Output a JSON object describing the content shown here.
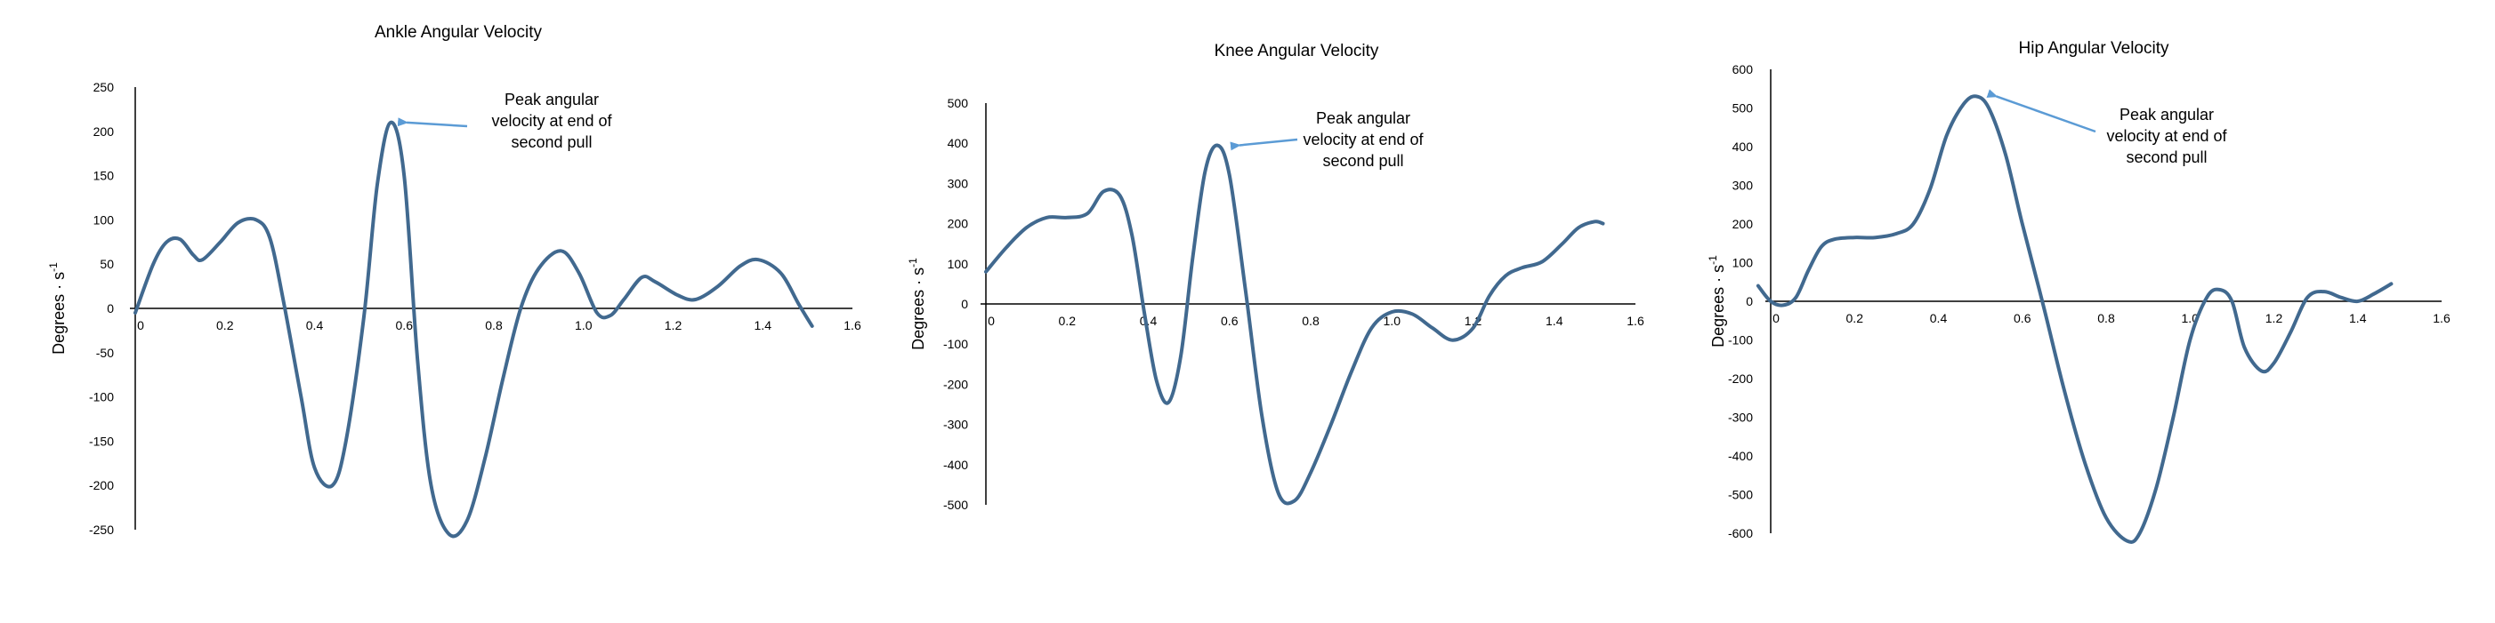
{
  "colors": {
    "series": "#41698f",
    "annotation_arrow": "#5b9bd5",
    "axis": "#000000"
  },
  "chart_data": [
    {
      "type": "line",
      "title": "Ankle Angular Velocity",
      "ylabel": "Degrees · s",
      "ylabel_sup": "-1",
      "xlim": [
        0,
        1.6
      ],
      "ylim": [
        -250,
        250
      ],
      "x_ticks": [
        "0",
        "0.2",
        "0.4",
        "0.6",
        "0.8",
        "1.0",
        "1.2",
        "1.4",
        "1.6"
      ],
      "y_ticks": [
        "250",
        "200",
        "150",
        "100",
        "50",
        "0",
        "-50",
        "-100",
        "-150",
        "-200",
        "-250"
      ],
      "x_tick_values": [
        0,
        0.2,
        0.4,
        0.6,
        0.8,
        1.0,
        1.2,
        1.4,
        1.6
      ],
      "y_tick_values": [
        250,
        200,
        150,
        100,
        50,
        0,
        -50,
        -100,
        -150,
        -200,
        -250
      ],
      "grid": false,
      "annotation": {
        "lines": [
          "Peak angular",
          "velocity at end of",
          "second pull"
        ],
        "x": 0.57,
        "y": 210
      },
      "series": [
        {
          "x": [
            0,
            0.04,
            0.07,
            0.1,
            0.13,
            0.15,
            0.19,
            0.23,
            0.27,
            0.3,
            0.33,
            0.37,
            0.4,
            0.44,
            0.47,
            0.51,
            0.54,
            0.57,
            0.6,
            0.63,
            0.66,
            0.7,
            0.74,
            0.78,
            0.82,
            0.86,
            0.9,
            0.95,
            0.99,
            1.03,
            1.06,
            1.09,
            1.13,
            1.16,
            1.21,
            1.25,
            1.3,
            1.35,
            1.39,
            1.44,
            1.48,
            1.51
          ],
          "y": [
            -5,
            50,
            75,
            78,
            60,
            55,
            75,
            97,
            100,
            80,
            10,
            -100,
            -180,
            -200,
            -150,
            -10,
            140,
            210,
            150,
            -60,
            -200,
            -255,
            -240,
            -170,
            -80,
            0,
            45,
            65,
            40,
            -5,
            -8,
            10,
            35,
            30,
            15,
            10,
            25,
            48,
            55,
            40,
            5,
            -20
          ]
        }
      ]
    },
    {
      "type": "line",
      "title": "Knee Angular Velocity",
      "ylabel": "Degrees · s",
      "ylabel_sup": "-1",
      "xlim": [
        0,
        1.6
      ],
      "ylim": [
        -500,
        500
      ],
      "x_ticks": [
        "0",
        "0.2",
        "0.4",
        "0.6",
        "0.8",
        "1.0",
        "1.2",
        "1.4",
        "1.6"
      ],
      "y_ticks": [
        "500",
        "400",
        "300",
        "200",
        "100",
        "0",
        "-100",
        "-200",
        "-300",
        "-400",
        "-500"
      ],
      "x_tick_values": [
        0,
        0.2,
        0.4,
        0.6,
        0.8,
        1.0,
        1.2,
        1.4,
        1.6
      ],
      "y_tick_values": [
        500,
        400,
        300,
        200,
        100,
        0,
        -100,
        -200,
        -300,
        -400,
        -500
      ],
      "grid": false,
      "annotation": {
        "lines": [
          "Peak angular",
          "velocity at end of",
          "second pull"
        ],
        "x": 0.585,
        "y": 395
      },
      "series": [
        {
          "x": [
            0,
            0.05,
            0.1,
            0.15,
            0.2,
            0.25,
            0.29,
            0.33,
            0.36,
            0.39,
            0.42,
            0.45,
            0.48,
            0.51,
            0.54,
            0.57,
            0.6,
            0.64,
            0.68,
            0.72,
            0.76,
            0.8,
            0.85,
            0.9,
            0.95,
            1.0,
            1.05,
            1.1,
            1.15,
            1.2,
            1.24,
            1.28,
            1.32,
            1.37,
            1.42,
            1.46,
            1.5,
            1.52
          ],
          "y": [
            80,
            140,
            190,
            215,
            215,
            225,
            280,
            270,
            170,
            -20,
            -190,
            -245,
            -130,
            120,
            330,
            395,
            320,
            30,
            -280,
            -470,
            -490,
            -420,
            -300,
            -170,
            -60,
            -20,
            -25,
            -60,
            -90,
            -60,
            20,
            70,
            90,
            105,
            150,
            190,
            205,
            200
          ]
        }
      ]
    },
    {
      "type": "line",
      "title": "Hip Angular Velocity",
      "ylabel": "Degrees · s",
      "ylabel_sup": "-1",
      "xlim": [
        0,
        1.6
      ],
      "ylim": [
        -600,
        600
      ],
      "x_ticks": [
        "0",
        "0.2",
        "0.4",
        "0.6",
        "0.8",
        "1.0",
        "1.2",
        "1.4",
        "1.6"
      ],
      "y_ticks": [
        "600",
        "500",
        "400",
        "300",
        "200",
        "100",
        "0",
        "-100",
        "-200",
        "-300",
        "-400",
        "-500",
        "-600"
      ],
      "x_tick_values": [
        0,
        0.2,
        0.4,
        0.6,
        0.8,
        1.0,
        1.2,
        1.4,
        1.6
      ],
      "y_tick_values": [
        600,
        500,
        400,
        300,
        200,
        100,
        0,
        -100,
        -200,
        -300,
        -400,
        -500,
        -600
      ],
      "grid": false,
      "annotation": {
        "lines": [
          "Peak angular",
          "velocity at end of",
          "second pull"
        ],
        "x": 0.5,
        "y": 530
      },
      "series": [
        {
          "x": [
            -0.03,
            0,
            0.03,
            0.06,
            0.09,
            0.12,
            0.15,
            0.2,
            0.25,
            0.3,
            0.34,
            0.38,
            0.42,
            0.46,
            0.49,
            0.52,
            0.56,
            0.6,
            0.65,
            0.7,
            0.75,
            0.8,
            0.85,
            0.88,
            0.92,
            0.96,
            1.0,
            1.04,
            1.07,
            1.1,
            1.13,
            1.17,
            1.2,
            1.24,
            1.28,
            1.32,
            1.36,
            1.4,
            1.44,
            1.48
          ],
          "y": [
            40,
            0,
            -10,
            10,
            80,
            140,
            160,
            165,
            165,
            175,
            200,
            290,
            430,
            510,
            530,
            500,
            380,
            200,
            -10,
            -230,
            -420,
            -560,
            -620,
            -600,
            -480,
            -300,
            -100,
            10,
            30,
            0,
            -120,
            -180,
            -160,
            -80,
            10,
            25,
            10,
            0,
            20,
            45
          ]
        }
      ]
    }
  ]
}
